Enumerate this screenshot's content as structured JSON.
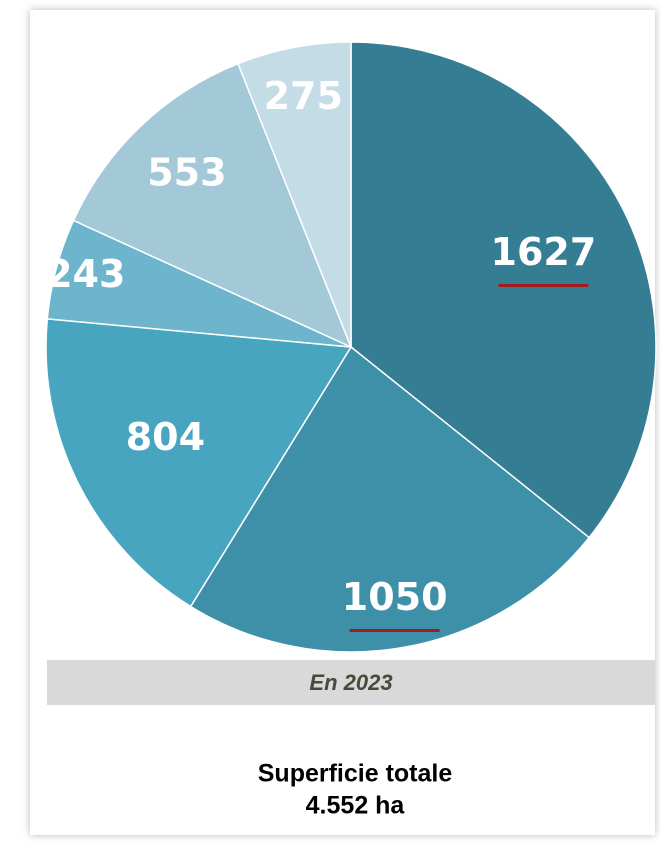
{
  "chart_data": {
    "type": "pie",
    "categories": [
      null,
      null,
      null,
      null,
      null,
      null
    ],
    "values": [
      1627,
      1050,
      804,
      243,
      553,
      275
    ],
    "colors": [
      "#357d92",
      "#3e8fa8",
      "#47a5c0",
      "#6db5cc",
      "#a3c9d9",
      "#c3dce6"
    ],
    "caption": "En 2023",
    "footer": [
      "Superficie totale",
      "4.552 ha"
    ]
  }
}
